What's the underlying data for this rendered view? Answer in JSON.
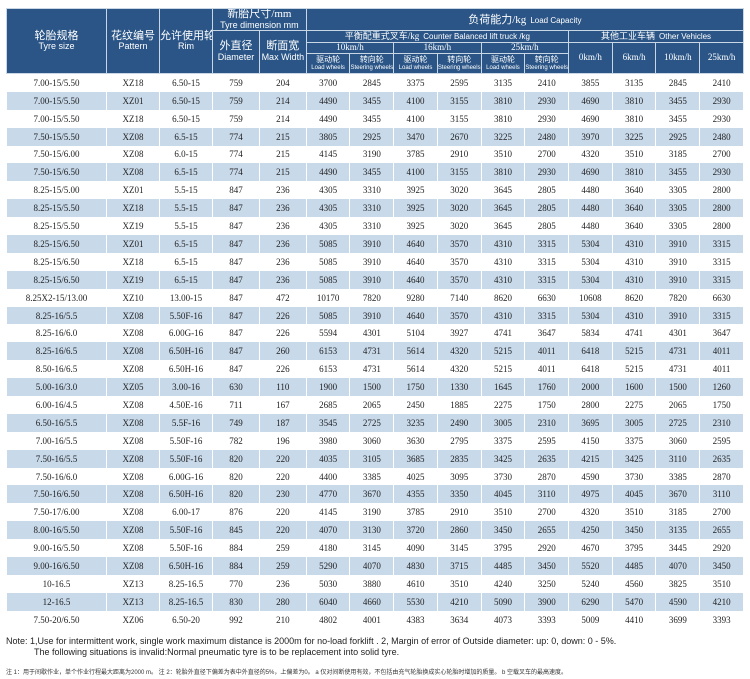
{
  "header": {
    "size_cn": "轮胎规格",
    "size_en": "Tyre size",
    "pattern_cn": "花纹编号",
    "pattern_en": "Pattern",
    "rim_cn": "允许使用轮辋",
    "rim_en": "Rim",
    "dim_cn": "新胎尺寸",
    "dim_unit": "mm",
    "dim_en": "Tyre dimension mm",
    "od_cn": "外直径",
    "od_en": "Diameter",
    "sw_cn": "断面宽",
    "sw_en": "Max Width",
    "load_cn": "负荷能力/kg",
    "load_en": "Load Capacity",
    "cbf_cn": "平衡配重式叉车/kg",
    "cbf_en": "Counter Balanced lift truck /kg",
    "other_cn": "其他工业车辆",
    "other_en": "Other Vehicles",
    "speeds": [
      "10km/h",
      "16km/h",
      "25km/h"
    ],
    "drive_cn": "驱动轮",
    "drive_en": "Load wheels",
    "steer_cn": "转向轮",
    "steer_en": "Steering wheels",
    "other_speeds": [
      "0km/h",
      "6km/h",
      "10km/h",
      "25km/h"
    ]
  },
  "rows": [
    [
      "7.00-15/5.50",
      "XZ18",
      "6.50-15",
      "759",
      "204",
      "3700",
      "2845",
      "3375",
      "2595",
      "3135",
      "2410",
      "3855",
      "3135",
      "2845",
      "2410"
    ],
    [
      "7.00-15/5.50",
      "XZ01",
      "6.50-15",
      "759",
      "214",
      "4490",
      "3455",
      "4100",
      "3155",
      "3810",
      "2930",
      "4690",
      "3810",
      "3455",
      "2930"
    ],
    [
      "7.00-15/5.50",
      "XZ18",
      "6.50-15",
      "759",
      "214",
      "4490",
      "3455",
      "4100",
      "3155",
      "3810",
      "2930",
      "4690",
      "3810",
      "3455",
      "2930"
    ],
    [
      "7.50-15/5.50",
      "XZ08",
      "6.5-15",
      "774",
      "215",
      "3805",
      "2925",
      "3470",
      "2670",
      "3225",
      "2480",
      "3970",
      "3225",
      "2925",
      "2480"
    ],
    [
      "7.50-15/6.00",
      "XZ08",
      "6.0-15",
      "774",
      "215",
      "4145",
      "3190",
      "3785",
      "2910",
      "3510",
      "2700",
      "4320",
      "3510",
      "3185",
      "2700"
    ],
    [
      "7.50-15/6.50",
      "XZ08",
      "6.5-15",
      "774",
      "215",
      "4490",
      "3455",
      "4100",
      "3155",
      "3810",
      "2930",
      "4690",
      "3810",
      "3455",
      "2930"
    ],
    [
      "8.25-15/5.00",
      "XZ01",
      "5.5-15",
      "847",
      "236",
      "4305",
      "3310",
      "3925",
      "3020",
      "3645",
      "2805",
      "4480",
      "3640",
      "3305",
      "2800"
    ],
    [
      "8.25-15/5.50",
      "XZ18",
      "5.5-15",
      "847",
      "236",
      "4305",
      "3310",
      "3925",
      "3020",
      "3645",
      "2805",
      "4480",
      "3640",
      "3305",
      "2800"
    ],
    [
      "8.25-15/5.50",
      "XZ19",
      "5.5-15",
      "847",
      "236",
      "4305",
      "3310",
      "3925",
      "3020",
      "3645",
      "2805",
      "4480",
      "3640",
      "3305",
      "2800"
    ],
    [
      "8.25-15/6.50",
      "XZ01",
      "6.5-15",
      "847",
      "236",
      "5085",
      "3910",
      "4640",
      "3570",
      "4310",
      "3315",
      "5304",
      "4310",
      "3910",
      "3315"
    ],
    [
      "8.25-15/6.50",
      "XZ18",
      "6.5-15",
      "847",
      "236",
      "5085",
      "3910",
      "4640",
      "3570",
      "4310",
      "3315",
      "5304",
      "4310",
      "3910",
      "3315"
    ],
    [
      "8.25-15/6.50",
      "XZ19",
      "6.5-15",
      "847",
      "236",
      "5085",
      "3910",
      "4640",
      "3570",
      "4310",
      "3315",
      "5304",
      "4310",
      "3910",
      "3315"
    ],
    [
      "8.25X2-15/13.00",
      "XZ10",
      "13.00-15",
      "847",
      "472",
      "10170",
      "7820",
      "9280",
      "7140",
      "8620",
      "6630",
      "10608",
      "8620",
      "7820",
      "6630"
    ],
    [
      "8.25-16/5.5",
      "XZ08",
      "5.50F-16",
      "847",
      "226",
      "5085",
      "3910",
      "4640",
      "3570",
      "4310",
      "3315",
      "5304",
      "4310",
      "3910",
      "3315"
    ],
    [
      "8.25-16/6.0",
      "XZ08",
      "6.00G-16",
      "847",
      "226",
      "5594",
      "4301",
      "5104",
      "3927",
      "4741",
      "3647",
      "5834",
      "4741",
      "4301",
      "3647"
    ],
    [
      "8.25-16/6.5",
      "XZ08",
      "6.50H-16",
      "847",
      "260",
      "6153",
      "4731",
      "5614",
      "4320",
      "5215",
      "4011",
      "6418",
      "5215",
      "4731",
      "4011"
    ],
    [
      "8.50-16/6.5",
      "XZ08",
      "6.50H-16",
      "847",
      "226",
      "6153",
      "4731",
      "5614",
      "4320",
      "5215",
      "4011",
      "6418",
      "5215",
      "4731",
      "4011"
    ],
    [
      "5.00-16/3.0",
      "XZ05",
      "3.00-16",
      "630",
      "110",
      "1900",
      "1500",
      "1750",
      "1330",
      "1645",
      "1760",
      "2000",
      "1600",
      "1500",
      "1260"
    ],
    [
      "6.00-16/4.5",
      "XZ08",
      "4.50E-16",
      "711",
      "167",
      "2685",
      "2065",
      "2450",
      "1885",
      "2275",
      "1750",
      "2800",
      "2275",
      "2065",
      "1750"
    ],
    [
      "6.50-16/5.5",
      "XZ08",
      "5.5F-16",
      "749",
      "187",
      "3545",
      "2725",
      "3235",
      "2490",
      "3005",
      "2310",
      "3695",
      "3005",
      "2725",
      "2310"
    ],
    [
      "7.00-16/5.5",
      "XZ08",
      "5.50F-16",
      "782",
      "196",
      "3980",
      "3060",
      "3630",
      "2795",
      "3375",
      "2595",
      "4150",
      "3375",
      "3060",
      "2595"
    ],
    [
      "7.50-16/5.5",
      "XZ08",
      "5.50F-16",
      "820",
      "220",
      "4035",
      "3105",
      "3685",
      "2835",
      "3425",
      "2635",
      "4215",
      "3425",
      "3110",
      "2635"
    ],
    [
      "7.50-16/6.0",
      "XZ08",
      "6.00G-16",
      "820",
      "220",
      "4400",
      "3385",
      "4025",
      "3095",
      "3730",
      "2870",
      "4590",
      "3730",
      "3385",
      "2870"
    ],
    [
      "7.50-16/6.50",
      "XZ08",
      "6.50H-16",
      "820",
      "230",
      "4770",
      "3670",
      "4355",
      "3350",
      "4045",
      "3110",
      "4975",
      "4045",
      "3670",
      "3110"
    ],
    [
      "7.50-17/6.00",
      "XZ08",
      "6.00-17",
      "876",
      "220",
      "4145",
      "3190",
      "3785",
      "2910",
      "3510",
      "2700",
      "4320",
      "3510",
      "3185",
      "2700"
    ],
    [
      "8.00-16/5.50",
      "XZ08",
      "5.50F-16",
      "845",
      "220",
      "4070",
      "3130",
      "3720",
      "2860",
      "3450",
      "2655",
      "4250",
      "3450",
      "3135",
      "2655"
    ],
    [
      "9.00-16/5.50",
      "XZ08",
      "5.50F-16",
      "884",
      "259",
      "4180",
      "3145",
      "4090",
      "3145",
      "3795",
      "2920",
      "4670",
      "3795",
      "3445",
      "2920"
    ],
    [
      "9.00-16/6.50",
      "XZ08",
      "6.50H-16",
      "884",
      "259",
      "5290",
      "4070",
      "4830",
      "3715",
      "4485",
      "3450",
      "5520",
      "4485",
      "4070",
      "3450"
    ],
    [
      "10-16.5",
      "XZ13",
      "8.25-16.5",
      "770",
      "236",
      "5030",
      "3880",
      "4610",
      "3510",
      "4240",
      "3250",
      "5240",
      "4560",
      "3825",
      "3510"
    ],
    [
      "12-16.5",
      "XZ13",
      "8.25-16.5",
      "830",
      "280",
      "6040",
      "4660",
      "5530",
      "4210",
      "5090",
      "3900",
      "6290",
      "5470",
      "4590",
      "4210"
    ],
    [
      "7.50-20/6.50",
      "XZ06",
      "6.50-20",
      "992",
      "210",
      "4802",
      "4001",
      "4383",
      "3634",
      "4073",
      "3393",
      "5009",
      "4410",
      "3699",
      "3393"
    ]
  ],
  "notes": {
    "line1": "Note: 1,Use for intermittent work, single work maximum distance is 2000m for no-load forklift . 2, Margin of error of Outside diameter: up: 0, down: 0 - 5%.",
    "line2": "The following situations is invalid:Normal pneumatic tyre is to be replacement into solid tyre.",
    "cn": "注 1：用于间歇作业，单个作业行程最大距离为2000 m。  注 2：轮胎外直径下偏差为表中外直径的5%，上偏差为0。 a 仅对间断使用有效，不包括由充气轮胎换成实心轮胎时增加的质量。  b 空载叉车的最高速度。"
  },
  "colors": {
    "header_bg": "#2a5586",
    "stripe": "#c8d9ea"
  }
}
